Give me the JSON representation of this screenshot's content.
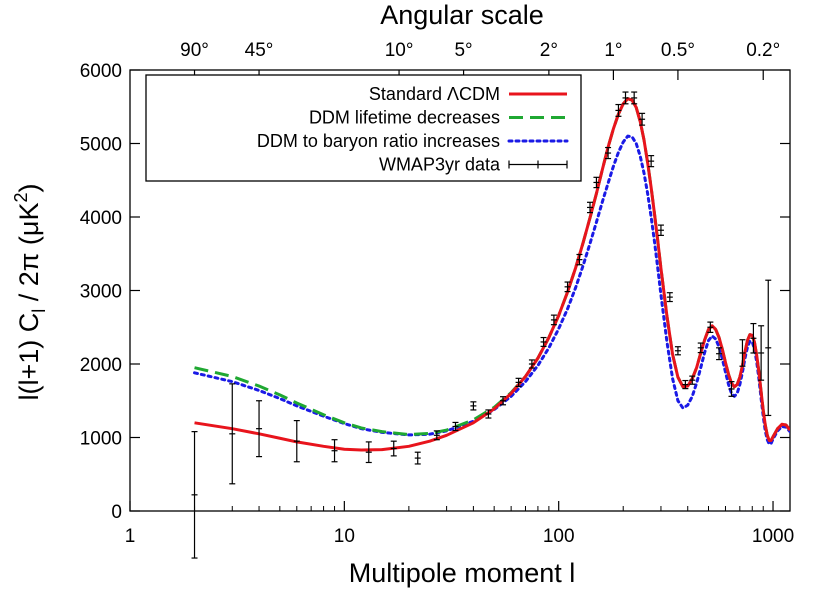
{
  "chart_data": {
    "type": "line",
    "x_scale": "log",
    "xlim": [
      1,
      1200
    ],
    "ylim": [
      0,
      6000
    ],
    "x_ticks": [
      {
        "value": 1,
        "label": "1"
      },
      {
        "value": 10,
        "label": "10"
      },
      {
        "value": 100,
        "label": "100"
      },
      {
        "value": 1000,
        "label": "1000"
      }
    ],
    "y_ticks": [
      {
        "value": 0,
        "label": "0"
      },
      {
        "value": 1000,
        "label": "1000"
      },
      {
        "value": 2000,
        "label": "2000"
      },
      {
        "value": 3000,
        "label": "3000"
      },
      {
        "value": 4000,
        "label": "4000"
      },
      {
        "value": 5000,
        "label": "5000"
      },
      {
        "value": 6000,
        "label": "6000"
      }
    ],
    "top_axis_title": "Angular scale",
    "top_ticks": [
      {
        "l": 2,
        "label": "90°"
      },
      {
        "l": 4,
        "label": "45°"
      },
      {
        "l": 18,
        "label": "10°"
      },
      {
        "l": 36,
        "label": "5°"
      },
      {
        "l": 90,
        "label": "2°"
      },
      {
        "l": 180,
        "label": "1°"
      },
      {
        "l": 360,
        "label": "0.5°"
      },
      {
        "l": 900,
        "label": "0.2°"
      }
    ],
    "xlabel": "Multipole moment l",
    "ylabel_parts": {
      "pre": "l(l+1) C",
      "sub": "l",
      "mid": " / 2π (μK",
      "sup": "2",
      "post": ")"
    },
    "legend_position": "top-left",
    "series": [
      {
        "name": "Standard ΛCDM",
        "color": "#e8141c",
        "style": "solid",
        "x": [
          2,
          3,
          4,
          5,
          6,
          8,
          10,
          12,
          15,
          20,
          25,
          30,
          40,
          50,
          60,
          70,
          80,
          90,
          100,
          110,
          120,
          130,
          140,
          150,
          160,
          170,
          180,
          190,
          200,
          210,
          220,
          230,
          240,
          250,
          260,
          270,
          280,
          290,
          300,
          320,
          340,
          360,
          380,
          400,
          420,
          440,
          460,
          480,
          500,
          520,
          540,
          560,
          580,
          600,
          620,
          640,
          660,
          680,
          700,
          720,
          740,
          760,
          780,
          800,
          820,
          840,
          860,
          880,
          900,
          920,
          940,
          960,
          980,
          1000,
          1050,
          1100,
          1150,
          1200
        ],
        "y": [
          1200,
          1120,
          1050,
          990,
          940,
          880,
          840,
          830,
          835,
          880,
          950,
          1030,
          1200,
          1390,
          1600,
          1830,
          2080,
          2360,
          2660,
          2980,
          3310,
          3650,
          3990,
          4320,
          4650,
          4950,
          5200,
          5400,
          5540,
          5610,
          5590,
          5490,
          5300,
          5050,
          4740,
          4400,
          4040,
          3670,
          3300,
          2650,
          2130,
          1820,
          1690,
          1700,
          1800,
          1950,
          2150,
          2330,
          2470,
          2520,
          2470,
          2360,
          2200,
          2020,
          1860,
          1740,
          1690,
          1720,
          1820,
          1980,
          2170,
          2320,
          2400,
          2390,
          2290,
          2110,
          1880,
          1620,
          1370,
          1170,
          1030,
          960,
          960,
          1010,
          1120,
          1180,
          1170,
          1100
        ]
      },
      {
        "name": "DDM lifetime decreases",
        "color": "#1fa832",
        "style": "dashed",
        "x": [
          2,
          3,
          4,
          5,
          6,
          8,
          10,
          12,
          15,
          20,
          25,
          30,
          40,
          50,
          60,
          70,
          80,
          90,
          100,
          110,
          120,
          130,
          140,
          150,
          160,
          170,
          180,
          190,
          200,
          210,
          220,
          230,
          240,
          250,
          260,
          270,
          280,
          290,
          300,
          320,
          340,
          360,
          380,
          400,
          420,
          440,
          460,
          480,
          500,
          520,
          540,
          560,
          580,
          600,
          620,
          640,
          660,
          680,
          700,
          720,
          740,
          760,
          780,
          800,
          820,
          840,
          860,
          880,
          900,
          920,
          940,
          960,
          980,
          1000,
          1050,
          1100,
          1150,
          1200
        ],
        "y": [
          1950,
          1830,
          1700,
          1580,
          1470,
          1310,
          1200,
          1130,
          1080,
          1040,
          1055,
          1100,
          1240,
          1410,
          1610,
          1830,
          2080,
          2360,
          2660,
          2980,
          3310,
          3650,
          3990,
          4320,
          4650,
          4950,
          5200,
          5400,
          5540,
          5610,
          5590,
          5490,
          5300,
          5050,
          4740,
          4400,
          4040,
          3670,
          3300,
          2650,
          2130,
          1820,
          1690,
          1700,
          1800,
          1950,
          2150,
          2330,
          2470,
          2520,
          2470,
          2360,
          2200,
          2020,
          1860,
          1740,
          1690,
          1720,
          1820,
          1980,
          2170,
          2320,
          2400,
          2390,
          2290,
          2110,
          1880,
          1620,
          1370,
          1170,
          1030,
          960,
          960,
          1010,
          1120,
          1180,
          1170,
          1100
        ]
      },
      {
        "name": "DDM to baryon ratio increases",
        "color": "#1a1ae6",
        "style": "dotted",
        "x": [
          2,
          3,
          4,
          5,
          6,
          8,
          10,
          12,
          15,
          20,
          25,
          30,
          40,
          50,
          60,
          70,
          80,
          90,
          100,
          110,
          120,
          130,
          140,
          150,
          160,
          170,
          180,
          190,
          200,
          210,
          220,
          230,
          240,
          250,
          260,
          270,
          280,
          290,
          300,
          320,
          340,
          360,
          380,
          400,
          420,
          440,
          460,
          480,
          500,
          520,
          540,
          560,
          580,
          600,
          620,
          640,
          660,
          680,
          700,
          720,
          740,
          760,
          780,
          800,
          820,
          840,
          860,
          880,
          900,
          920,
          940,
          960,
          980,
          1000,
          1050,
          1100,
          1150,
          1200
        ],
        "y": [
          1880,
          1760,
          1640,
          1530,
          1430,
          1290,
          1190,
          1120,
          1070,
          1035,
          1045,
          1090,
          1220,
          1380,
          1560,
          1760,
          1980,
          2220,
          2480,
          2750,
          3040,
          3340,
          3640,
          3930,
          4210,
          4460,
          4690,
          4880,
          5020,
          5100,
          5090,
          5000,
          4830,
          4600,
          4320,
          4000,
          3660,
          3300,
          2940,
          2300,
          1800,
          1500,
          1400,
          1440,
          1560,
          1740,
          1950,
          2160,
          2320,
          2380,
          2340,
          2230,
          2070,
          1890,
          1720,
          1600,
          1560,
          1600,
          1720,
          1890,
          2080,
          2230,
          2310,
          2300,
          2200,
          2020,
          1790,
          1530,
          1290,
          1090,
          970,
          910,
          920,
          980,
          1090,
          1150,
          1140,
          1080
        ]
      }
    ],
    "errorbars": {
      "name": "WMAP3yr data",
      "color": "#000000",
      "points": [
        {
          "x": 2,
          "y": 220,
          "err": 860
        },
        {
          "x": 3,
          "y": 1050,
          "err": 680
        },
        {
          "x": 4,
          "y": 1120,
          "err": 380
        },
        {
          "x": 6,
          "y": 950,
          "err": 280
        },
        {
          "x": 9,
          "y": 820,
          "err": 150
        },
        {
          "x": 13,
          "y": 800,
          "err": 140
        },
        {
          "x": 17,
          "y": 850,
          "err": 100
        },
        {
          "x": 22,
          "y": 720,
          "err": 80
        },
        {
          "x": 27,
          "y": 1030,
          "err": 60
        },
        {
          "x": 33,
          "y": 1150,
          "err": 55
        },
        {
          "x": 40,
          "y": 1430,
          "err": 55
        },
        {
          "x": 47,
          "y": 1320,
          "err": 55
        },
        {
          "x": 55,
          "y": 1500,
          "err": 55
        },
        {
          "x": 65,
          "y": 1750,
          "err": 55
        },
        {
          "x": 75,
          "y": 2000,
          "err": 55
        },
        {
          "x": 85,
          "y": 2300,
          "err": 60
        },
        {
          "x": 95,
          "y": 2600,
          "err": 65
        },
        {
          "x": 110,
          "y": 3050,
          "err": 65
        },
        {
          "x": 125,
          "y": 3420,
          "err": 70
        },
        {
          "x": 140,
          "y": 4130,
          "err": 70
        },
        {
          "x": 150,
          "y": 4470,
          "err": 70
        },
        {
          "x": 170,
          "y": 4870,
          "err": 75
        },
        {
          "x": 190,
          "y": 5450,
          "err": 80
        },
        {
          "x": 205,
          "y": 5620,
          "err": 80
        },
        {
          "x": 225,
          "y": 5620,
          "err": 80
        },
        {
          "x": 245,
          "y": 5330,
          "err": 80
        },
        {
          "x": 270,
          "y": 4760,
          "err": 75
        },
        {
          "x": 300,
          "y": 3820,
          "err": 70
        },
        {
          "x": 330,
          "y": 2910,
          "err": 60
        },
        {
          "x": 360,
          "y": 2180,
          "err": 55
        },
        {
          "x": 390,
          "y": 1720,
          "err": 55
        },
        {
          "x": 420,
          "y": 1780,
          "err": 55
        },
        {
          "x": 460,
          "y": 2220,
          "err": 65
        },
        {
          "x": 510,
          "y": 2500,
          "err": 70
        },
        {
          "x": 560,
          "y": 2140,
          "err": 80
        },
        {
          "x": 640,
          "y": 1660,
          "err": 100
        },
        {
          "x": 720,
          "y": 2150,
          "err": 180
        },
        {
          "x": 810,
          "y": 2350,
          "err": 200
        },
        {
          "x": 880,
          "y": 2150,
          "err": 370
        },
        {
          "x": 950,
          "y": 2220,
          "err": 920
        }
      ]
    }
  }
}
